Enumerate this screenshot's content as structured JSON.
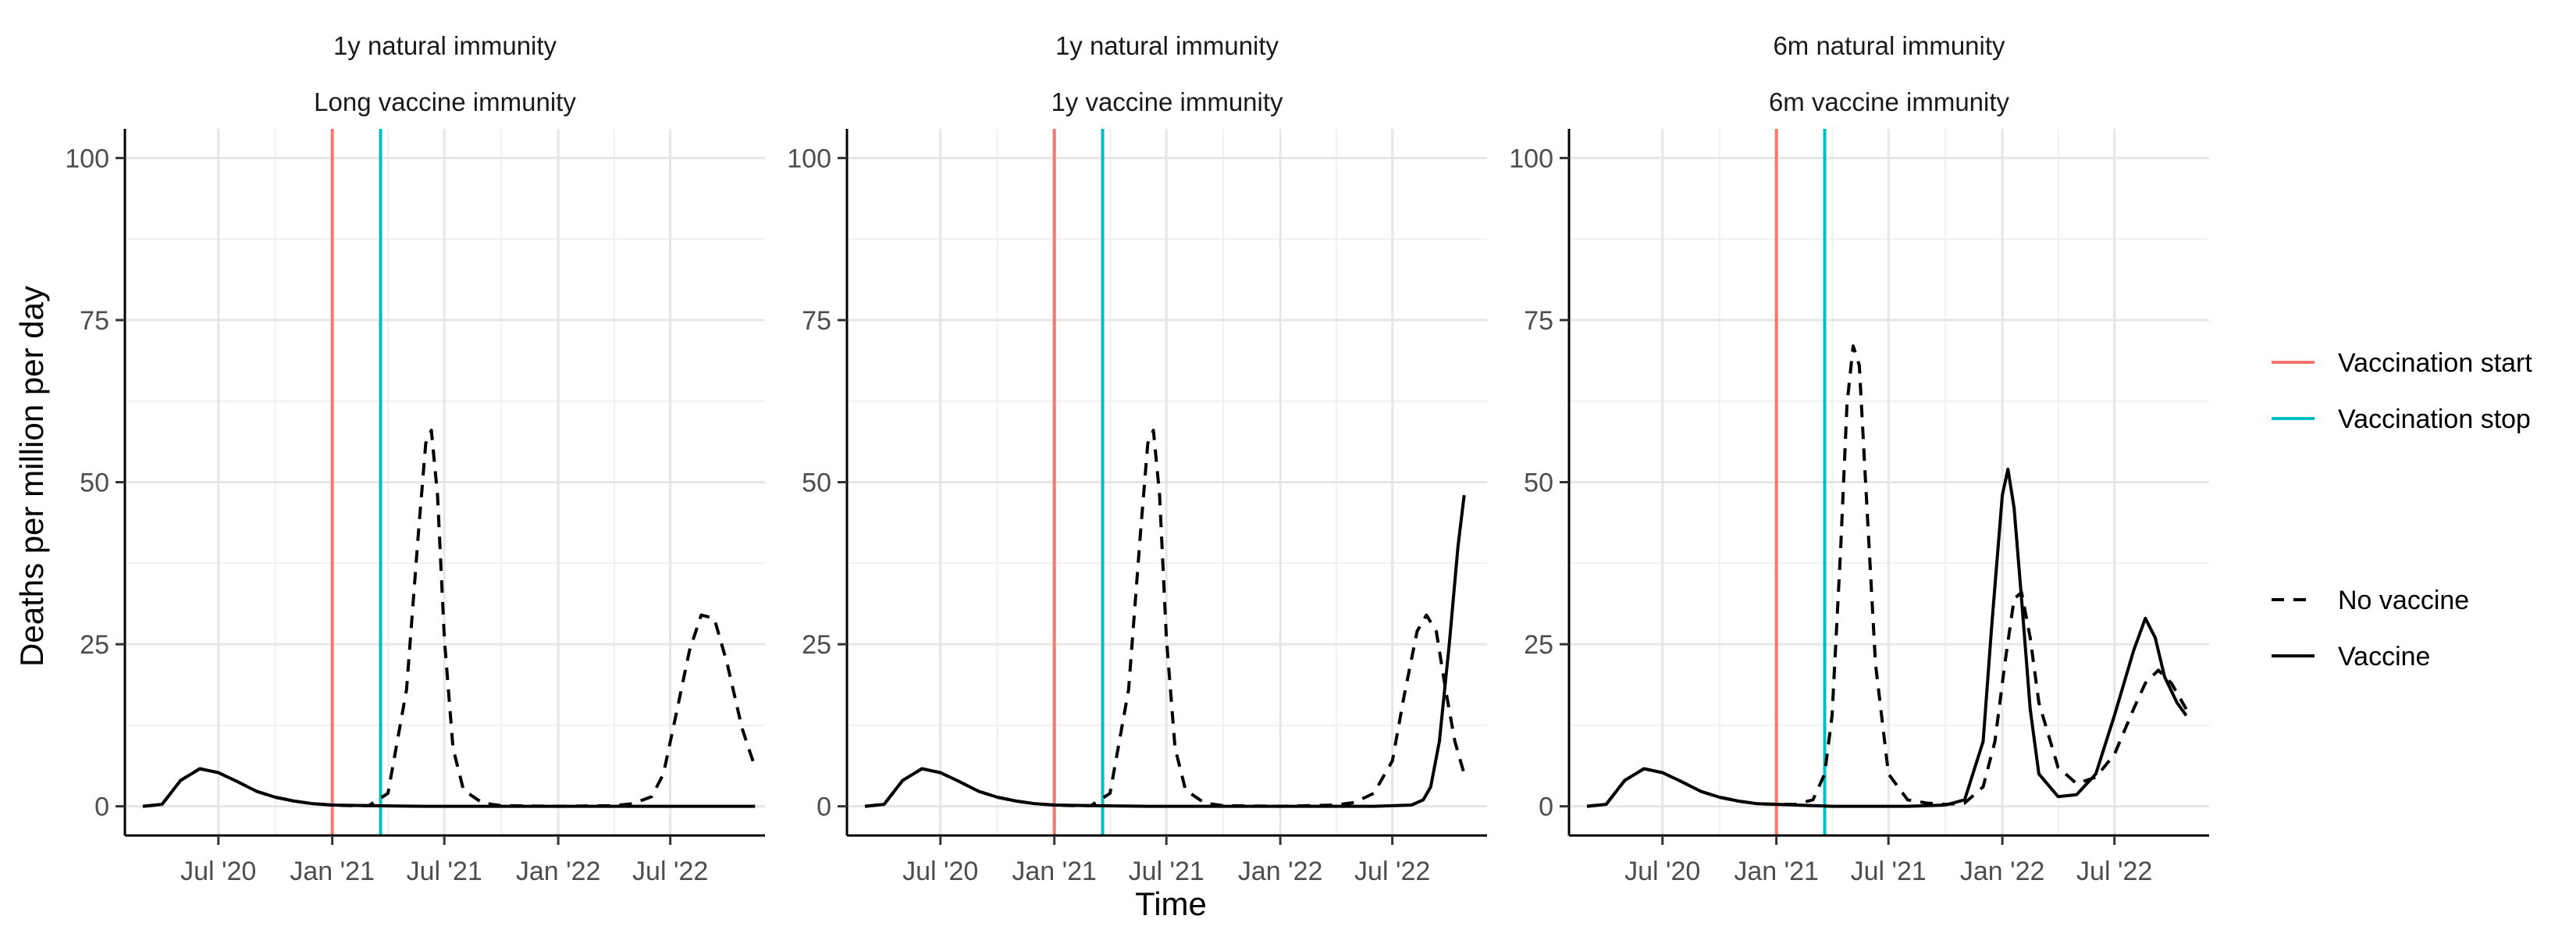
{
  "chart_data": {
    "type": "line",
    "ylabel": "Deaths per million per day",
    "xlabel": "Time",
    "ylim": [
      0,
      100
    ],
    "yticks": [
      0,
      25,
      50,
      75,
      100
    ],
    "xlim": [
      "2020-02-01",
      "2022-12-01"
    ],
    "xticks": [
      {
        "date": "2020-07-01",
        "label": "Jul '20"
      },
      {
        "date": "2021-01-01",
        "label": "Jan '21"
      },
      {
        "date": "2021-07-01",
        "label": "Jul '21"
      },
      {
        "date": "2022-01-01",
        "label": "Jan '22"
      },
      {
        "date": "2022-07-01",
        "label": "Jul '22"
      }
    ],
    "grid": true,
    "legend_position": "right",
    "legend_color": {
      "items": [
        {
          "label": "Vaccination start",
          "color": "#F8766D"
        },
        {
          "label": "Vaccination stop",
          "color": "#00BFC4"
        }
      ]
    },
    "legend_linetype": {
      "items": [
        {
          "label": "No vaccine",
          "dash": "dashed"
        },
        {
          "label": "Vaccine",
          "dash": "solid"
        }
      ]
    },
    "vlines": [
      {
        "name": "Vaccination start",
        "date": "2021-01-01",
        "color": "#F8766D"
      },
      {
        "name": "Vaccination stop",
        "date": "2021-03-20",
        "color": "#00BFC4"
      }
    ],
    "panels": [
      {
        "strip": [
          "1y natural immunity",
          "Long vaccine immunity"
        ],
        "series": [
          {
            "name": "No vaccine",
            "dash": "dashed",
            "x": [
              "2020-03-01",
              "2020-04-01",
              "2020-05-01",
              "2020-06-01",
              "2020-07-01",
              "2020-08-01",
              "2020-09-01",
              "2020-10-01",
              "2020-11-01",
              "2020-12-01",
              "2021-01-01",
              "2021-02-01",
              "2021-03-01",
              "2021-04-01",
              "2021-05-01",
              "2021-05-20",
              "2021-06-01",
              "2021-06-10",
              "2021-06-20",
              "2021-07-01",
              "2021-07-15",
              "2021-08-01",
              "2021-09-01",
              "2021-10-01",
              "2022-01-01",
              "2022-04-01",
              "2022-05-01",
              "2022-06-01",
              "2022-06-20",
              "2022-07-10",
              "2022-08-01",
              "2022-08-20",
              "2022-09-10",
              "2022-10-01",
              "2022-10-25",
              "2022-11-15"
            ],
            "y": [
              0,
              0.3,
              4.0,
              5.8,
              5.2,
              3.8,
              2.3,
              1.4,
              0.8,
              0.4,
              0.2,
              0.1,
              0.1,
              2.0,
              18,
              42,
              56,
              58,
              48,
              26,
              9,
              2.5,
              0.5,
              0.1,
              0,
              0.1,
              0.4,
              1.5,
              5,
              14,
              24,
              29.5,
              29,
              22,
              12,
              6
            ]
          },
          {
            "name": "Vaccine",
            "dash": "solid",
            "x": [
              "2020-03-01",
              "2020-04-01",
              "2020-05-01",
              "2020-06-01",
              "2020-07-01",
              "2020-08-01",
              "2020-09-01",
              "2020-10-01",
              "2020-11-01",
              "2020-12-01",
              "2021-01-01",
              "2021-03-01",
              "2021-06-01",
              "2022-01-01",
              "2022-06-01",
              "2022-11-15"
            ],
            "y": [
              0,
              0.3,
              4.0,
              5.8,
              5.2,
              3.8,
              2.3,
              1.4,
              0.8,
              0.4,
              0.2,
              0.1,
              0,
              0,
              0,
              0
            ]
          }
        ]
      },
      {
        "strip": [
          "1y natural immunity",
          "1y vaccine immunity"
        ],
        "series": [
          {
            "name": "No vaccine",
            "dash": "dashed",
            "x": [
              "2020-03-01",
              "2020-04-01",
              "2020-05-01",
              "2020-06-01",
              "2020-07-01",
              "2020-08-01",
              "2020-09-01",
              "2020-10-01",
              "2020-11-01",
              "2020-12-01",
              "2021-01-01",
              "2021-02-01",
              "2021-03-01",
              "2021-04-01",
              "2021-05-01",
              "2021-05-20",
              "2021-06-01",
              "2021-06-10",
              "2021-06-20",
              "2021-07-01",
              "2021-07-15",
              "2021-08-01",
              "2021-09-01",
              "2021-10-01",
              "2022-01-01",
              "2022-04-01",
              "2022-05-01",
              "2022-06-01",
              "2022-07-01",
              "2022-07-20",
              "2022-08-10",
              "2022-08-25",
              "2022-09-10",
              "2022-09-25",
              "2022-10-10",
              "2022-10-25"
            ],
            "y": [
              0,
              0.3,
              4.0,
              5.8,
              5.2,
              3.8,
              2.3,
              1.4,
              0.8,
              0.4,
              0.2,
              0.1,
              0.1,
              2.0,
              18,
              42,
              56,
              58,
              48,
              26,
              9,
              2.5,
              0.5,
              0.1,
              0,
              0.2,
              0.6,
              2,
              7,
              17,
              27,
              29.5,
              27,
              18,
              10,
              5
            ]
          },
          {
            "name": "Vaccine",
            "dash": "solid",
            "x": [
              "2020-03-01",
              "2020-04-01",
              "2020-05-01",
              "2020-06-01",
              "2020-07-01",
              "2020-08-01",
              "2020-09-01",
              "2020-10-01",
              "2020-11-01",
              "2020-12-01",
              "2021-01-01",
              "2021-03-01",
              "2021-06-01",
              "2022-01-01",
              "2022-06-01",
              "2022-08-01",
              "2022-08-20",
              "2022-09-01",
              "2022-09-15",
              "2022-10-01",
              "2022-10-15",
              "2022-10-25"
            ],
            "y": [
              0,
              0.3,
              4.0,
              5.8,
              5.2,
              3.8,
              2.3,
              1.4,
              0.8,
              0.4,
              0.2,
              0.1,
              0,
              0,
              0,
              0.2,
              1,
              3,
              10,
              25,
              40,
              48
            ]
          }
        ]
      },
      {
        "strip": [
          "6m natural immunity",
          "6m vaccine immunity"
        ],
        "series": [
          {
            "name": "No vaccine",
            "dash": "dashed",
            "x": [
              "2020-03-01",
              "2020-04-01",
              "2020-05-01",
              "2020-06-01",
              "2020-07-01",
              "2020-08-01",
              "2020-09-01",
              "2020-10-01",
              "2020-11-01",
              "2020-12-01",
              "2021-01-01",
              "2021-02-01",
              "2021-03-01",
              "2021-03-20",
              "2021-04-01",
              "2021-04-15",
              "2021-04-25",
              "2021-05-05",
              "2021-05-15",
              "2021-05-25",
              "2021-06-10",
              "2021-07-01",
              "2021-08-01",
              "2021-09-01",
              "2021-10-01",
              "2021-11-01",
              "2021-12-01",
              "2021-12-20",
              "2022-01-05",
              "2022-01-20",
              "2022-02-01",
              "2022-02-15",
              "2022-03-01",
              "2022-04-01",
              "2022-05-01",
              "2022-06-01",
              "2022-07-01",
              "2022-08-01",
              "2022-08-20",
              "2022-09-10",
              "2022-10-01",
              "2022-10-25"
            ],
            "y": [
              0,
              0.3,
              4.0,
              5.8,
              5.2,
              3.8,
              2.3,
              1.4,
              0.8,
              0.4,
              0.3,
              0.3,
              1,
              5,
              14,
              40,
              62,
              71,
              68,
              50,
              22,
              5,
              1,
              0.5,
              0.3,
              0.5,
              3,
              10,
              22,
              32,
              33,
              26,
              16,
              6,
              3.5,
              4.5,
              8,
              15,
              19,
              21,
              19,
              15
            ]
          },
          {
            "name": "Vaccine",
            "dash": "solid",
            "x": [
              "2020-03-01",
              "2020-04-01",
              "2020-05-01",
              "2020-06-01",
              "2020-07-01",
              "2020-08-01",
              "2020-09-01",
              "2020-10-01",
              "2020-11-01",
              "2020-12-01",
              "2021-01-01",
              "2021-02-01",
              "2021-03-01",
              "2021-04-01",
              "2021-06-01",
              "2021-08-01",
              "2021-10-01",
              "2021-11-01",
              "2021-12-01",
              "2021-12-15",
              "2022-01-01",
              "2022-01-10",
              "2022-01-20",
              "2022-02-01",
              "2022-02-15",
              "2022-03-01",
              "2022-04-01",
              "2022-05-01",
              "2022-06-01",
              "2022-07-01",
              "2022-08-01",
              "2022-08-20",
              "2022-09-05",
              "2022-09-20",
              "2022-10-10",
              "2022-10-25"
            ],
            "y": [
              0,
              0.3,
              4.0,
              5.8,
              5.2,
              3.8,
              2.3,
              1.4,
              0.8,
              0.4,
              0.3,
              0.2,
              0.1,
              0,
              0,
              0,
              0.2,
              1,
              10,
              28,
              48,
              52,
              46,
              32,
              15,
              5,
              1.5,
              1.8,
              5,
              14,
              24,
              29,
              26,
              20,
              16,
              14
            ]
          }
        ]
      }
    ]
  }
}
